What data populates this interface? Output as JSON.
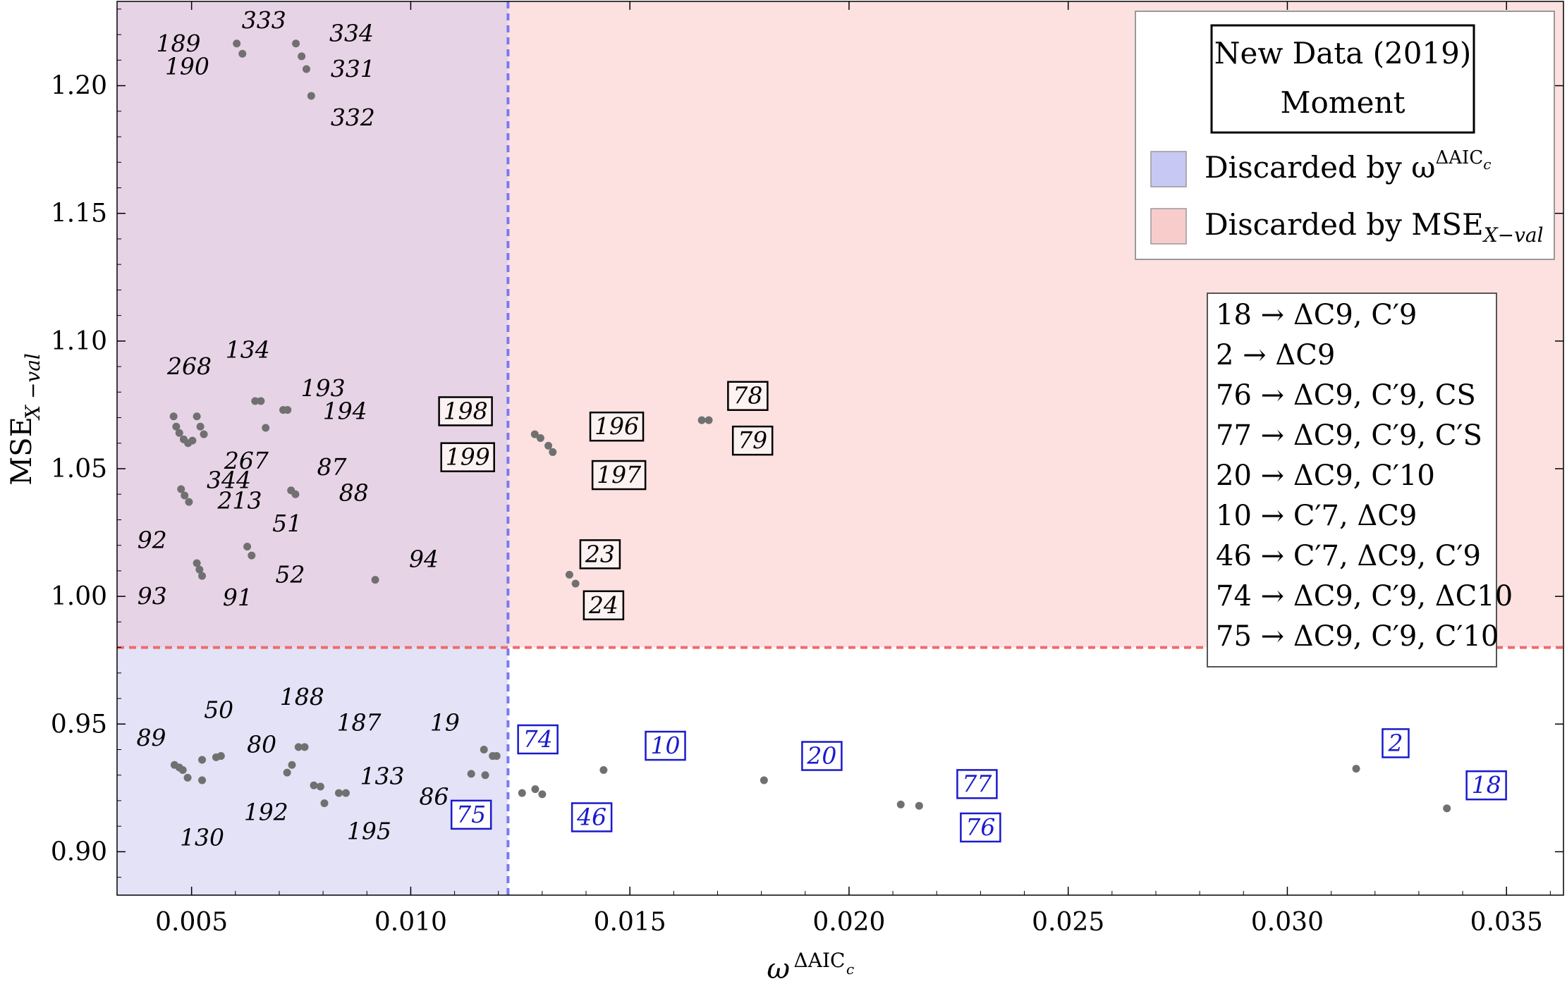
{
  "chart_data": {
    "type": "scatter",
    "title": "",
    "xlabel": "ω^ΔAIC_c",
    "ylabel": "MSE_X-val",
    "xlim": [
      0.0033,
      0.0363
    ],
    "ylim": [
      0.883,
      1.233
    ],
    "x_ticks": [
      {
        "value": 0.005,
        "label": "0.005"
      },
      {
        "value": 0.01,
        "label": "0.010"
      },
      {
        "value": 0.015,
        "label": "0.015"
      },
      {
        "value": 0.02,
        "label": "0.020"
      },
      {
        "value": 0.025,
        "label": "0.025"
      },
      {
        "value": 0.03,
        "label": "0.030"
      },
      {
        "value": 0.035,
        "label": "0.035"
      }
    ],
    "y_ticks": [
      {
        "value": 0.9,
        "label": "0.90"
      },
      {
        "value": 0.95,
        "label": "0.95"
      },
      {
        "value": 1.0,
        "label": "1.00"
      },
      {
        "value": 1.05,
        "label": "1.05"
      },
      {
        "value": 1.1,
        "label": "1.10"
      },
      {
        "value": 1.15,
        "label": "1.15"
      },
      {
        "value": 1.2,
        "label": "1.20"
      }
    ],
    "thresholds": {
      "x": 0.01222,
      "y": 0.98
    },
    "regions": [
      {
        "name": "Discarded by ω^ΔAIC_c",
        "color": "#c8c8f4"
      },
      {
        "name": "Discarded by MSE_X-val",
        "color": "#f9cccc"
      }
    ],
    "points": [
      {
        "x": 0.00603,
        "y": 1.2165
      },
      {
        "x": 0.00616,
        "y": 1.2125
      },
      {
        "x": 0.00738,
        "y": 1.2165
      },
      {
        "x": 0.00751,
        "y": 1.2115
      },
      {
        "x": 0.00762,
        "y": 1.2065
      },
      {
        "x": 0.00773,
        "y": 1.196
      },
      {
        "x": 0.00459,
        "y": 1.0705
      },
      {
        "x": 0.00465,
        "y": 1.0665
      },
      {
        "x": 0.00472,
        "y": 1.064
      },
      {
        "x": 0.00482,
        "y": 1.0615
      },
      {
        "x": 0.00492,
        "y": 1.06
      },
      {
        "x": 0.00502,
        "y": 1.061
      },
      {
        "x": 0.00512,
        "y": 1.0705
      },
      {
        "x": 0.0052,
        "y": 1.0665
      },
      {
        "x": 0.00528,
        "y": 1.0635
      },
      {
        "x": 0.00476,
        "y": 1.042
      },
      {
        "x": 0.00484,
        "y": 1.0395
      },
      {
        "x": 0.00494,
        "y": 1.037
      },
      {
        "x": 0.00645,
        "y": 1.0765
      },
      {
        "x": 0.00658,
        "y": 1.0765
      },
      {
        "x": 0.00669,
        "y": 1.066
      },
      {
        "x": 0.00709,
        "y": 1.073
      },
      {
        "x": 0.00719,
        "y": 1.073
      },
      {
        "x": 0.00727,
        "y": 1.0415
      },
      {
        "x": 0.00737,
        "y": 1.04
      },
      {
        "x": 0.00627,
        "y": 1.0195
      },
      {
        "x": 0.00637,
        "y": 1.016
      },
      {
        "x": 0.00512,
        "y": 1.013
      },
      {
        "x": 0.00518,
        "y": 1.0105
      },
      {
        "x": 0.00524,
        "y": 1.008
      },
      {
        "x": 0.00919,
        "y": 1.0065
      },
      {
        "x": 0.01283,
        "y": 1.0635
      },
      {
        "x": 0.01296,
        "y": 1.062
      },
      {
        "x": 0.01314,
        "y": 1.059
      },
      {
        "x": 0.01324,
        "y": 1.0565
      },
      {
        "x": 0.01664,
        "y": 1.069
      },
      {
        "x": 0.0168,
        "y": 1.069
      },
      {
        "x": 0.01362,
        "y": 1.0085
      },
      {
        "x": 0.01376,
        "y": 1.005
      },
      {
        "x": 0.00461,
        "y": 0.934
      },
      {
        "x": 0.00472,
        "y": 0.933
      },
      {
        "x": 0.0048,
        "y": 0.932
      },
      {
        "x": 0.00491,
        "y": 0.929
      },
      {
        "x": 0.00524,
        "y": 0.928
      },
      {
        "x": 0.00524,
        "y": 0.936
      },
      {
        "x": 0.00556,
        "y": 0.937
      },
      {
        "x": 0.00567,
        "y": 0.9375
      },
      {
        "x": 0.00744,
        "y": 0.941
      },
      {
        "x": 0.00758,
        "y": 0.941
      },
      {
        "x": 0.00718,
        "y": 0.931
      },
      {
        "x": 0.00729,
        "y": 0.934
      },
      {
        "x": 0.00779,
        "y": 0.926
      },
      {
        "x": 0.00794,
        "y": 0.9255
      },
      {
        "x": 0.00803,
        "y": 0.919
      },
      {
        "x": 0.00836,
        "y": 0.923
      },
      {
        "x": 0.00852,
        "y": 0.923
      },
      {
        "x": 0.01138,
        "y": 0.9305
      },
      {
        "x": 0.0117,
        "y": 0.93
      },
      {
        "x": 0.01167,
        "y": 0.94
      },
      {
        "x": 0.01187,
        "y": 0.9375
      },
      {
        "x": 0.01196,
        "y": 0.9375
      },
      {
        "x": 0.01254,
        "y": 0.923
      },
      {
        "x": 0.01284,
        "y": 0.9245
      },
      {
        "x": 0.013,
        "y": 0.9225
      },
      {
        "x": 0.0144,
        "y": 0.932
      },
      {
        "x": 0.01806,
        "y": 0.928
      },
      {
        "x": 0.02118,
        "y": 0.9185
      },
      {
        "x": 0.0216,
        "y": 0.918
      },
      {
        "x": 0.03157,
        "y": 0.9325
      },
      {
        "x": 0.03364,
        "y": 0.917
      }
    ],
    "labels": [
      {
        "text": "189",
        "style": "plain",
        "x": 0.0047,
        "y": 1.2165
      },
      {
        "text": "190",
        "style": "plain",
        "x": 0.0049,
        "y": 1.2075
      },
      {
        "text": "333",
        "style": "plain",
        "x": 0.00665,
        "y": 1.2255
      },
      {
        "text": "334",
        "style": "plain",
        "x": 0.00865,
        "y": 1.2205
      },
      {
        "text": "331",
        "style": "plain",
        "x": 0.00868,
        "y": 1.2065
      },
      {
        "text": "332",
        "style": "plain",
        "x": 0.00868,
        "y": 1.1875
      },
      {
        "text": "268",
        "style": "plain",
        "x": 0.00495,
        "y": 1.09
      },
      {
        "text": "134",
        "style": "plain",
        "x": 0.00628,
        "y": 1.0965
      },
      {
        "text": "193",
        "style": "plain",
        "x": 0.008,
        "y": 1.0815
      },
      {
        "text": "194",
        "style": "plain",
        "x": 0.0085,
        "y": 1.0725
      },
      {
        "text": "267",
        "style": "plain",
        "x": 0.00625,
        "y": 1.053
      },
      {
        "text": "344",
        "style": "plain",
        "x": 0.00585,
        "y": 1.0455
      },
      {
        "text": "87",
        "style": "plain",
        "x": 0.0082,
        "y": 1.0505
      },
      {
        "text": "88",
        "style": "plain",
        "x": 0.0087,
        "y": 1.0405
      },
      {
        "text": "213",
        "style": "plain",
        "x": 0.0061,
        "y": 1.0375
      },
      {
        "text": "51",
        "style": "plain",
        "x": 0.00718,
        "y": 1.0285
      },
      {
        "text": "92",
        "style": "plain",
        "x": 0.0041,
        "y": 1.022
      },
      {
        "text": "52",
        "style": "plain",
        "x": 0.00725,
        "y": 1.0085
      },
      {
        "text": "94",
        "style": "plain",
        "x": 0.0103,
        "y": 1.0145
      },
      {
        "text": "93",
        "style": "plain",
        "x": 0.0041,
        "y": 1.0
      },
      {
        "text": "91",
        "style": "plain",
        "x": 0.00605,
        "y": 0.9995
      },
      {
        "text": "198",
        "style": "boxed",
        "x": 0.01125,
        "y": 1.0725
      },
      {
        "text": "199",
        "style": "boxed",
        "x": 0.0113,
        "y": 1.0545
      },
      {
        "text": "196",
        "style": "boxed",
        "x": 0.0147,
        "y": 1.0665
      },
      {
        "text": "197",
        "style": "boxed",
        "x": 0.01475,
        "y": 1.0475
      },
      {
        "text": "78",
        "style": "boxed",
        "x": 0.01769,
        "y": 1.0785
      },
      {
        "text": "79",
        "style": "boxed",
        "x": 0.0178,
        "y": 1.061
      },
      {
        "text": "23",
        "style": "boxed",
        "x": 0.01432,
        "y": 1.0165
      },
      {
        "text": "24",
        "style": "boxed",
        "x": 0.0144,
        "y": 0.9965
      },
      {
        "text": "50",
        "style": "plain",
        "x": 0.00562,
        "y": 0.9555
      },
      {
        "text": "89",
        "style": "plain",
        "x": 0.00408,
        "y": 0.9445
      },
      {
        "text": "130",
        "style": "plain",
        "x": 0.00524,
        "y": 0.9055
      },
      {
        "text": "188",
        "style": "plain",
        "x": 0.00752,
        "y": 0.9605
      },
      {
        "text": "187",
        "style": "plain",
        "x": 0.00882,
        "y": 0.9505
      },
      {
        "text": "80",
        "style": "plain",
        "x": 0.0066,
        "y": 0.942
      },
      {
        "text": "133",
        "style": "plain",
        "x": 0.00935,
        "y": 0.9295
      },
      {
        "text": "192",
        "style": "plain",
        "x": 0.0067,
        "y": 0.9155
      },
      {
        "text": "195",
        "style": "plain",
        "x": 0.00905,
        "y": 0.908
      },
      {
        "text": "19",
        "style": "plain",
        "x": 0.01078,
        "y": 0.9505
      },
      {
        "text": "86",
        "style": "plain",
        "x": 0.01053,
        "y": 0.9215
      },
      {
        "text": "74",
        "style": "blue",
        "x": 0.0129,
        "y": 0.944
      },
      {
        "text": "75",
        "style": "blue",
        "x": 0.01138,
        "y": 0.9145
      },
      {
        "text": "46",
        "style": "blue",
        "x": 0.01413,
        "y": 0.9135
      },
      {
        "text": "10",
        "style": "blue",
        "x": 0.01581,
        "y": 0.9415
      },
      {
        "text": "20",
        "style": "blue",
        "x": 0.01938,
        "y": 0.9375
      },
      {
        "text": "77",
        "style": "blue",
        "x": 0.02292,
        "y": 0.9265
      },
      {
        "text": "76",
        "style": "blue",
        "x": 0.023,
        "y": 0.9095
      },
      {
        "text": "2",
        "style": "blue",
        "x": 0.03247,
        "y": 0.9425
      },
      {
        "text": "18",
        "style": "blue",
        "x": 0.03454,
        "y": 0.926
      }
    ]
  },
  "legend": {
    "title_line1": "New Data (2019)",
    "title_line2": "Moment",
    "items": [
      {
        "label": "Discarded by ω",
        "sup": "ΔAIC",
        "sub": "c",
        "color": "#c8c8f4"
      },
      {
        "label": "Discarded by MSE",
        "sub": "X−val",
        "color": "#f9cccc"
      }
    ]
  },
  "model_key": [
    "18 → ΔC9, C′9",
    "2 → ΔC9",
    "76 → ΔC9, C′9, CS",
    "77 → ΔC9, C′9, C′S",
    "20 → ΔC9, C′10",
    "10 → C′7, ΔC9",
    "46 → C′7, ΔC9, C′9",
    "74 → ΔC9, C′9, ΔC10",
    "75 → ΔC9, C′9, C′10"
  ],
  "colors": {
    "blue_region": "#e3e2f7",
    "red_region": "#fde1e1",
    "overlap_region": "#e7d3e6",
    "threshold_x_line": "#7a7af0",
    "threshold_y_line": "#ef6b6b",
    "point": "#707070",
    "highlight": "#1a1acc"
  }
}
